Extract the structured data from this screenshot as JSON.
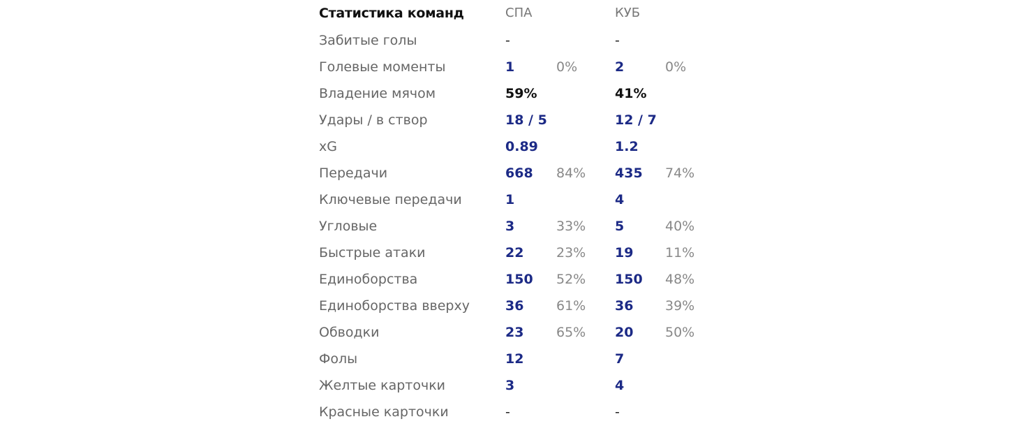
{
  "header": {
    "title": "Статистика команд",
    "team1": "СПА",
    "team2": "КУБ"
  },
  "rows": [
    {
      "label": "Забитые голы",
      "t1_value": "-",
      "t1_pct": "",
      "t2_value": "-",
      "t2_pct": ""
    },
    {
      "label": "Голевые моменты",
      "t1_value": "1",
      "t1_pct": "0%",
      "t2_value": "2",
      "t2_pct": "0%"
    },
    {
      "label": "Владение мячом",
      "t1_value": "59%",
      "t1_pct": "",
      "t2_value": "41%",
      "t2_pct": ""
    },
    {
      "label": "Удары / в створ",
      "t1_value": "18 / 5",
      "t1_pct": "",
      "t2_value": "12 / 7",
      "t2_pct": ""
    },
    {
      "label": "xG",
      "t1_value": "0.89",
      "t1_pct": "",
      "t2_value": "1.2",
      "t2_pct": ""
    },
    {
      "label": "Передачи",
      "t1_value": "668",
      "t1_pct": "84%",
      "t2_value": "435",
      "t2_pct": "74%"
    },
    {
      "label": "Ключевые передачи",
      "t1_value": "1",
      "t1_pct": "",
      "t2_value": "4",
      "t2_pct": ""
    },
    {
      "label": "Угловые",
      "t1_value": "3",
      "t1_pct": "33%",
      "t2_value": "5",
      "t2_pct": "40%"
    },
    {
      "label": "Быстрые атаки",
      "t1_value": "22",
      "t1_pct": "23%",
      "t2_value": "19",
      "t2_pct": "11%"
    },
    {
      "label": "Единоборства",
      "t1_value": "150",
      "t1_pct": "52%",
      "t2_value": "150",
      "t2_pct": "48%"
    },
    {
      "label": "Единоборства вверху",
      "t1_value": "36",
      "t1_pct": "61%",
      "t2_value": "36",
      "t2_pct": "39%"
    },
    {
      "label": "Обводки",
      "t1_value": "23",
      "t1_pct": "65%",
      "t2_value": "20",
      "t2_pct": "50%"
    },
    {
      "label": "Фолы",
      "t1_value": "12",
      "t1_pct": "",
      "t2_value": "7",
      "t2_pct": ""
    },
    {
      "label": "Желтые карточки",
      "t1_value": "3",
      "t1_pct": "",
      "t2_value": "4",
      "t2_pct": ""
    },
    {
      "label": "Красные карточки",
      "t1_value": "-",
      "t1_pct": "",
      "t2_value": "-",
      "t2_pct": ""
    }
  ],
  "colors": {
    "value_blue": "#1c2a86",
    "label_gray": "#666666",
    "percent_gray": "#888888",
    "title_dark": "#111111"
  }
}
